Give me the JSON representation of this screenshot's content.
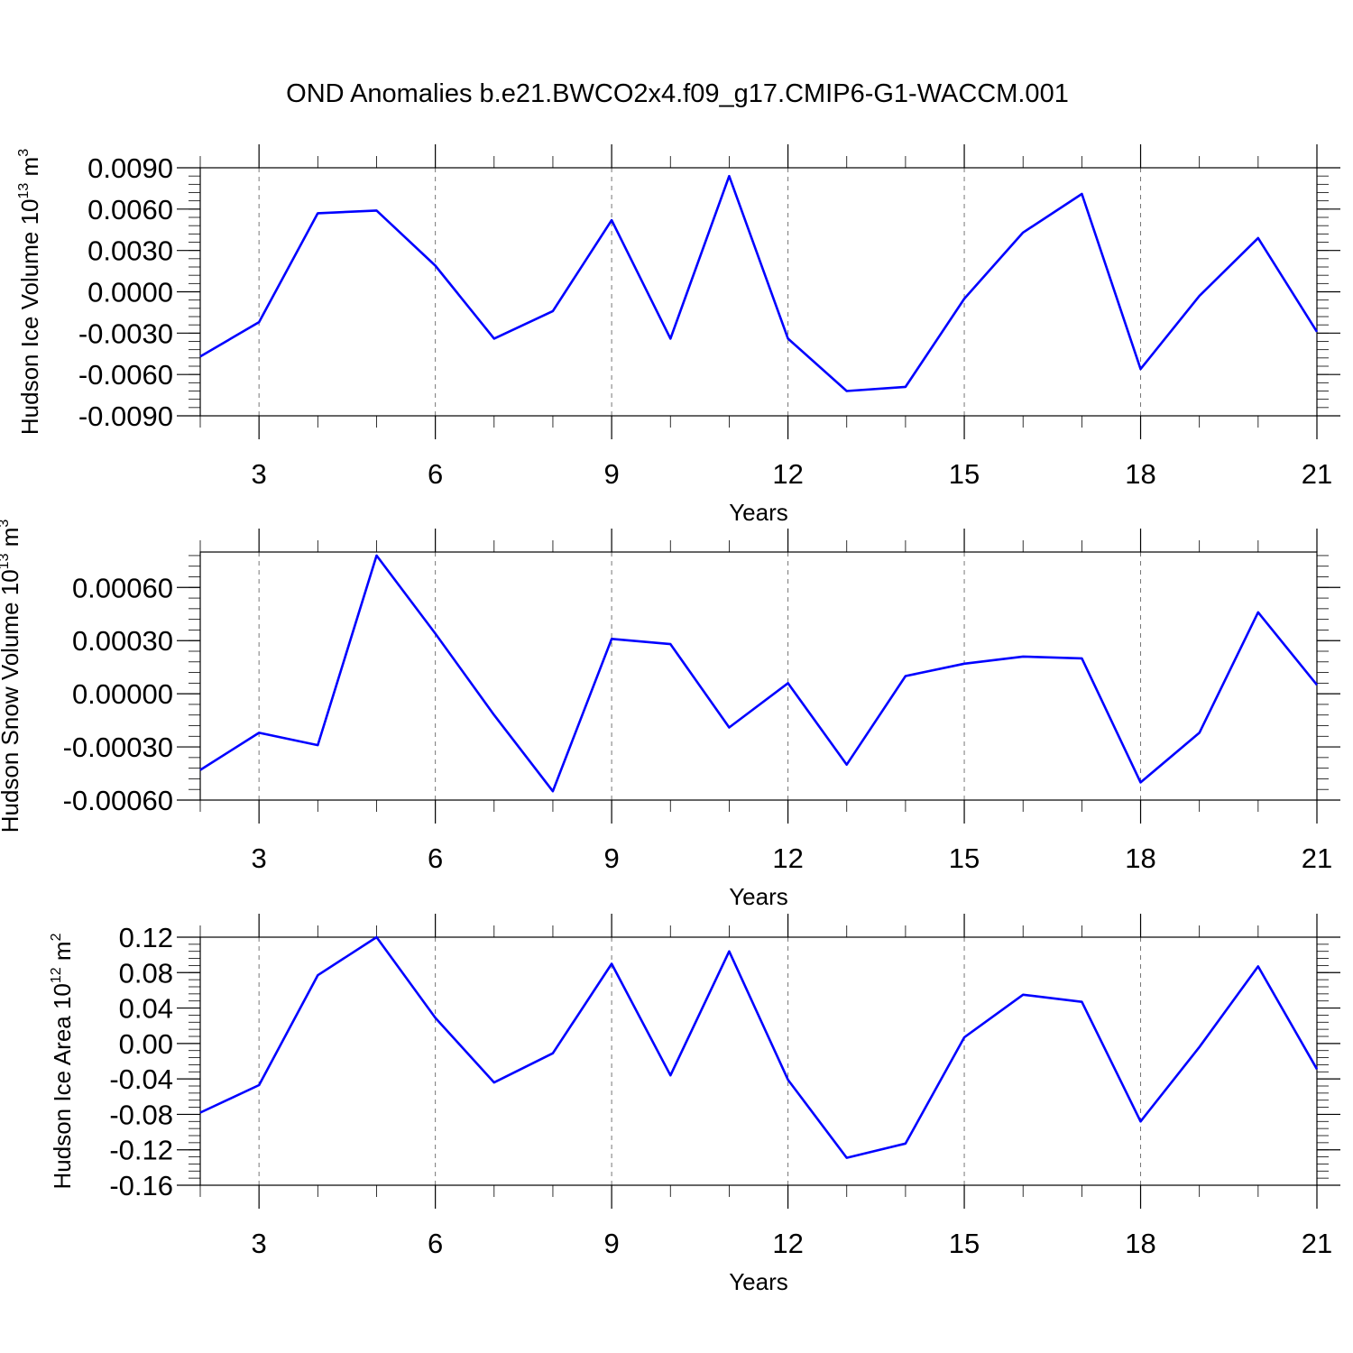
{
  "title": "OND Anomalies b.e21.BWCO2x4.f09_g17.CMIP6-G1-WACCM.001",
  "colors": {
    "series": "#0000ff",
    "grid": "#777777",
    "axis": "#000000"
  },
  "chart_data": [
    {
      "type": "line",
      "ylabel": {
        "prefix": "Hudson Ice Volume 10",
        "exponent": "13",
        "unit": " m",
        "unit_exponent": "3"
      },
      "xlabel": "Years",
      "xlim": [
        2,
        21
      ],
      "ylim": [
        -0.009,
        0.009
      ],
      "xticks": [
        "3",
        "6",
        "9",
        "12",
        "15",
        "18",
        "21"
      ],
      "yticks": [
        "0.0090",
        "0.0060",
        "0.0030",
        "0.0000",
        "-0.0030",
        "-0.0060",
        "-0.0090"
      ],
      "grid": "vertical dashed at major x ticks",
      "x": [
        2,
        3,
        4,
        5,
        6,
        7,
        8,
        9,
        10,
        11,
        12,
        13,
        14,
        15,
        16,
        17,
        18,
        19,
        20,
        21
      ],
      "values": [
        -0.0047,
        -0.0022,
        0.0057,
        0.0059,
        0.0019,
        -0.0034,
        -0.0014,
        0.0052,
        -0.0034,
        0.0084,
        -0.0034,
        -0.0072,
        -0.0069,
        -0.0005,
        0.0043,
        0.0071,
        -0.0056,
        -0.0003,
        0.0039,
        -0.0029
      ]
    },
    {
      "type": "line",
      "ylabel": {
        "prefix": "Hudson Snow Volume 10",
        "exponent": "13",
        "unit": " m",
        "unit_exponent": "3"
      },
      "xlabel": "Years",
      "xlim": [
        2,
        21
      ],
      "ylim": [
        -0.0006,
        0.0008
      ],
      "xticks": [
        "3",
        "6",
        "9",
        "12",
        "15",
        "18",
        "21"
      ],
      "yticks": [
        "0.00060",
        "0.00030",
        "0.00000",
        "-0.00030",
        "-0.00060"
      ],
      "grid": "vertical dashed at major x ticks",
      "x": [
        2,
        3,
        4,
        5,
        6,
        7,
        8,
        9,
        10,
        11,
        12,
        13,
        14,
        15,
        16,
        17,
        18,
        19,
        20,
        21
      ],
      "values": [
        -0.00043,
        -0.00022,
        -0.00029,
        0.00078,
        0.00034,
        -0.00012,
        -0.00055,
        0.00031,
        0.00028,
        -0.00019,
        6e-05,
        -0.0004,
        0.0001,
        0.00017,
        0.00021,
        0.0002,
        -0.0005,
        -0.00022,
        0.00046,
        5e-05
      ]
    },
    {
      "type": "line",
      "ylabel": {
        "prefix": "Hudson Ice Area 10",
        "exponent": "12",
        "unit": " m",
        "unit_exponent": "2"
      },
      "xlabel": "Years",
      "xlim": [
        2,
        21
      ],
      "ylim": [
        -0.16,
        0.12
      ],
      "xticks": [
        "3",
        "6",
        "9",
        "12",
        "15",
        "18",
        "21"
      ],
      "yticks": [
        "0.12",
        "0.08",
        "0.04",
        "0.00",
        "-0.04",
        "-0.08",
        "-0.12",
        "-0.16"
      ],
      "grid": "vertical dashed at major x ticks",
      "x": [
        2,
        3,
        4,
        5,
        6,
        7,
        8,
        9,
        10,
        11,
        12,
        13,
        14,
        15,
        16,
        17,
        18,
        19,
        20,
        21
      ],
      "values": [
        -0.078,
        -0.047,
        0.077,
        0.12,
        0.029,
        -0.044,
        -0.011,
        0.09,
        -0.036,
        0.104,
        -0.041,
        -0.129,
        -0.113,
        0.007,
        0.055,
        0.047,
        -0.088,
        -0.004,
        0.087,
        -0.029
      ]
    }
  ]
}
